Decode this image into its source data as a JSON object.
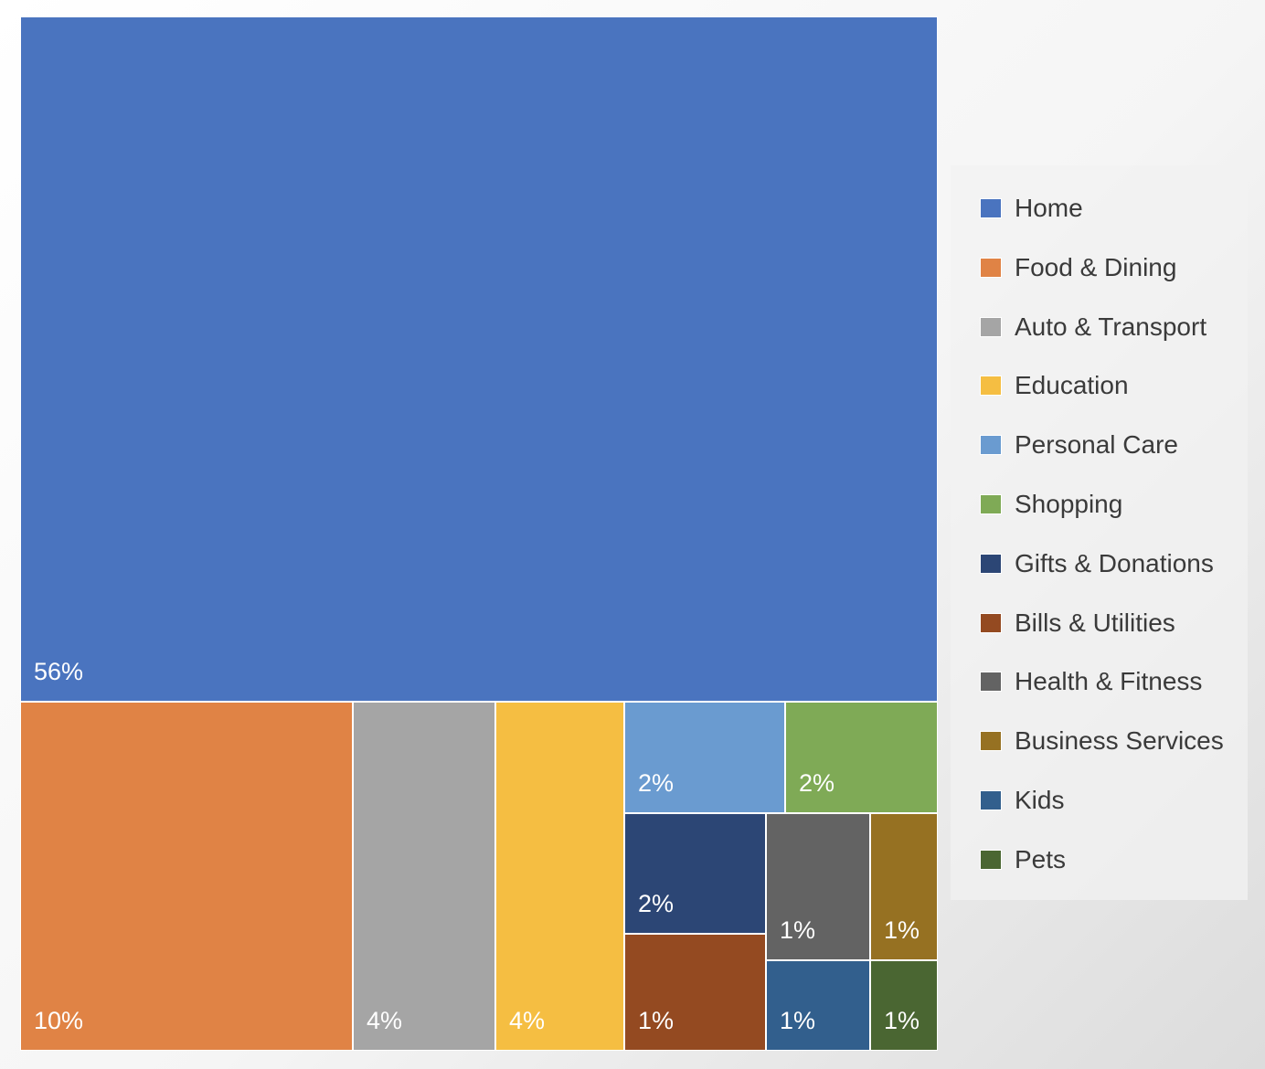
{
  "chart_data": {
    "type": "treemap",
    "title": "",
    "legend_position": "right",
    "items": [
      {
        "name": "Home",
        "value": 56,
        "label": "56%",
        "color": "#4A74BF"
      },
      {
        "name": "Food & Dining",
        "value": 10,
        "label": "10%",
        "color": "#E08345"
      },
      {
        "name": "Auto & Transport",
        "value": 4,
        "label": "4%",
        "color": "#A5A5A5"
      },
      {
        "name": "Education",
        "value": 4,
        "label": "4%",
        "color": "#F5BE42"
      },
      {
        "name": "Personal Care",
        "value": 2,
        "label": "2%",
        "color": "#6A9BD0"
      },
      {
        "name": "Shopping",
        "value": 2,
        "label": "2%",
        "color": "#7FAA56"
      },
      {
        "name": "Gifts & Donations",
        "value": 2,
        "label": "2%",
        "color": "#2C4675"
      },
      {
        "name": "Bills & Utilities",
        "value": 1,
        "label": "1%",
        "color": "#944A21"
      },
      {
        "name": "Health & Fitness",
        "value": 1,
        "label": "1%",
        "color": "#636363"
      },
      {
        "name": "Business Services",
        "value": 1,
        "label": "1%",
        "color": "#967122"
      },
      {
        "name": "Kids",
        "value": 1,
        "label": "1%",
        "color": "#325F8D"
      },
      {
        "name": "Pets",
        "value": 1,
        "label": "1%",
        "color": "#4A6632"
      }
    ]
  }
}
